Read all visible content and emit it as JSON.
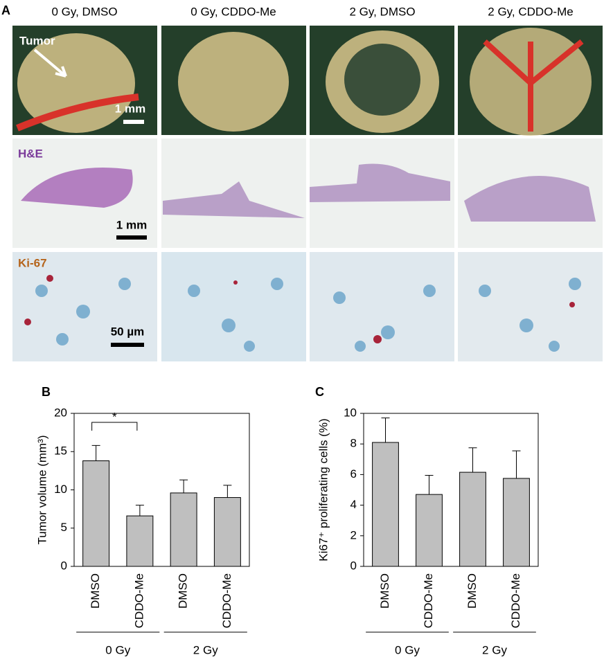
{
  "panel_a": {
    "label": "A",
    "columns": [
      "0 Gy, DMSO",
      "0 Gy, CDDO-Me",
      "2 Gy, DMSO",
      "2 Gy, CDDO-Me"
    ],
    "row_labels": [
      "H&E",
      "Ki-67"
    ],
    "arrow_label": "Tumor",
    "scale_bars": [
      "1 mm",
      "1 mm",
      "50 µm"
    ]
  },
  "chart_data": [
    {
      "type": "bar",
      "panel_label": "B",
      "ylabel": "Tumor volume (mm³)",
      "categories": [
        "DMSO",
        "CDDO-Me",
        "DMSO",
        "CDDO-Me"
      ],
      "group_labels": [
        "0 Gy",
        "2 Gy"
      ],
      "values": [
        13.8,
        6.6,
        9.6,
        9.0
      ],
      "errors": [
        2.0,
        1.4,
        1.7,
        1.6
      ],
      "ylim": [
        0,
        20
      ],
      "yticks": [
        0,
        5,
        10,
        15,
        20
      ],
      "color": "#bfbfbf",
      "significance": {
        "label": "*",
        "categories": [
          0,
          1
        ]
      }
    },
    {
      "type": "bar",
      "panel_label": "C",
      "ylabel": "Ki67⁺ proliferating cells (%)",
      "categories": [
        "DMSO",
        "CDDO-Me",
        "DMSO",
        "CDDO-Me"
      ],
      "group_labels": [
        "0 Gy",
        "2 Gy"
      ],
      "values": [
        8.1,
        4.7,
        6.15,
        5.75
      ],
      "errors": [
        1.6,
        1.25,
        1.6,
        1.8
      ],
      "ylim": [
        0,
        10
      ],
      "yticks": [
        0,
        2,
        4,
        6,
        8,
        10
      ],
      "color": "#bfbfbf"
    }
  ]
}
